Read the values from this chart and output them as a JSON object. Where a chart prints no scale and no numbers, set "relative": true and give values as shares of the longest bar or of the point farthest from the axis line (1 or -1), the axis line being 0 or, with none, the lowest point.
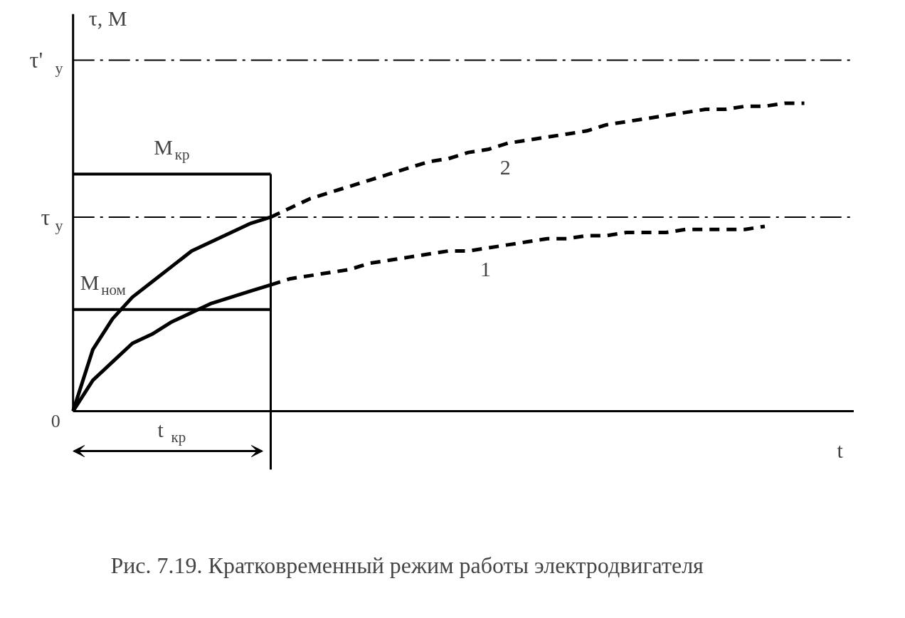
{
  "chart_data": {
    "type": "line",
    "relative": true,
    "xlabel": "t",
    "ylabel": "τ, M",
    "categories": [
      null,
      null,
      null,
      null,
      null,
      null,
      null,
      null,
      null,
      null,
      null,
      null,
      null,
      null,
      null,
      null,
      null,
      null,
      null,
      null,
      null,
      null,
      null,
      null,
      null,
      null,
      null,
      null,
      null,
      null,
      null,
      null,
      null,
      null,
      null,
      null,
      null,
      null
    ],
    "series": [
      {
        "color": "#000000",
        "line_style": "solid",
        "values": [
          0,
          0.2,
          0.3,
          0.37,
          0.42,
          0.47,
          0.52,
          0.55,
          0.58,
          0.61,
          0.63,
          null,
          null,
          null,
          null,
          null,
          null,
          null,
          null,
          null,
          null,
          null,
          null,
          null,
          null,
          null,
          null,
          null,
          null,
          null,
          null,
          null,
          null,
          null,
          null,
          null,
          null,
          null
        ]
      },
      {
        "name": "2",
        "color": "#000000",
        "line_style": "dashed",
        "values": [
          null,
          null,
          null,
          null,
          null,
          null,
          null,
          null,
          null,
          null,
          0.63,
          0.66,
          0.69,
          0.71,
          0.73,
          0.75,
          0.77,
          0.79,
          0.81,
          0.82,
          0.84,
          0.85,
          0.87,
          0.88,
          0.89,
          0.9,
          0.91,
          0.93,
          0.94,
          0.95,
          0.96,
          0.97,
          0.98,
          0.98,
          0.99,
          0.99,
          1.0,
          1.0
        ]
      },
      {
        "color": "#000000",
        "line_style": "solid",
        "values": [
          0,
          0.1,
          0.16,
          0.22,
          0.25,
          0.29,
          0.32,
          0.35,
          0.37,
          0.39,
          0.41,
          null,
          null,
          null,
          null,
          null,
          null,
          null,
          null,
          null,
          null,
          null,
          null,
          null,
          null,
          null,
          null,
          null,
          null,
          null,
          null,
          null,
          null,
          null,
          null,
          null,
          null,
          null
        ]
      },
      {
        "name": "1",
        "color": "#000000",
        "line_style": "dashed",
        "values": [
          null,
          null,
          null,
          null,
          null,
          null,
          null,
          null,
          null,
          null,
          0.41,
          0.43,
          0.44,
          0.45,
          0.46,
          0.48,
          0.49,
          0.5,
          0.51,
          0.52,
          0.52,
          0.53,
          0.54,
          0.55,
          0.56,
          0.56,
          0.57,
          0.57,
          0.58,
          0.58,
          0.58,
          0.59,
          0.59,
          0.59,
          0.59,
          0.6,
          null,
          null
        ]
      },
      {
        "name": "M$_{кр}$",
        "color": "#000000",
        "line_style": "solid",
        "values": [
          0.77,
          0.77,
          0.77,
          0.77,
          0.77,
          0.77,
          0.77,
          0.77,
          0.77,
          0.77,
          0.77,
          null,
          null,
          null,
          null,
          null,
          null,
          null,
          null,
          null,
          null,
          null,
          null,
          null,
          null,
          null,
          null,
          null,
          null,
          null,
          null,
          null,
          null,
          null,
          null,
          null,
          null,
          null
        ]
      },
      {
        "name": "M$_{ном}$",
        "color": "#000000",
        "line_style": "solid",
        "values": [
          0.33,
          0.33,
          0.33,
          0.33,
          0.33,
          0.33,
          0.33,
          0.33,
          0.33,
          0.33,
          0.33,
          null,
          null,
          null,
          null,
          null,
          null,
          null,
          null,
          null,
          null,
          null,
          null,
          null,
          null,
          null,
          null,
          null,
          null,
          null,
          null,
          null,
          null,
          null,
          null,
          null,
          null,
          null
        ]
      }
    ],
    "ref_lines": [
      {
        "axis": "y",
        "value": 1.14,
        "label": "τ'$_{у}$",
        "line_style": "dashdot",
        "color": "#000000"
      },
      {
        "axis": "y",
        "value": 0.63,
        "label": "τ$_{у}$",
        "line_style": "dashdot",
        "color": "#000000"
      }
    ],
    "annotations": [
      "0",
      "t$_{кр}$",
      "Рис. 7.19. Кратковременный режим работы электродвигателя"
    ]
  }
}
